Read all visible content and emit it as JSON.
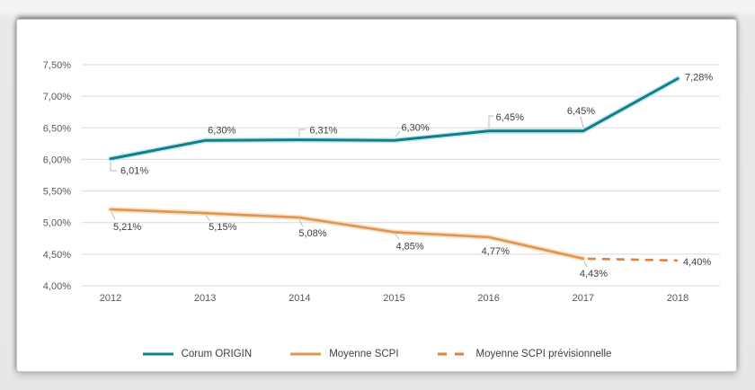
{
  "chart_data": {
    "type": "line",
    "title": "",
    "xlabel": "",
    "ylabel": "",
    "categories": [
      "2012",
      "2013",
      "2014",
      "2015",
      "2016",
      "2017",
      "2018"
    ],
    "y_axis": {
      "min": 4.0,
      "max": 7.5,
      "step": 0.5,
      "tick_labels": [
        "4,00%",
        "4,50%",
        "5,00%",
        "5,50%",
        "6,00%",
        "6,50%",
        "7,00%",
        "7,50%"
      ]
    },
    "grid": true,
    "legend_position": "bottom",
    "series": [
      {
        "name": "Corum ORIGIN",
        "color": "#117E8A",
        "halo": "#aadde1",
        "style": "solid",
        "values": [
          6.01,
          6.3,
          6.31,
          6.3,
          6.45,
          6.45,
          7.28
        ],
        "point_labels": [
          "6,01%",
          "6,30%",
          "6,31%",
          "6,30%",
          "6,45%",
          "6,45%",
          "7,28%"
        ]
      },
      {
        "name": "Moyenne SCPI",
        "color": "#E2954E",
        "halo": "#f2d4af",
        "style": "solid",
        "values": [
          5.21,
          5.15,
          5.08,
          4.85,
          4.77,
          4.43,
          null
        ],
        "point_labels": [
          "5,21%",
          "5,15%",
          "5,08%",
          "4,85%",
          "4,77%",
          "4,43%",
          null
        ]
      },
      {
        "name": "Moyenne SCPI prévisionnelle",
        "color": "#DE8241",
        "halo": null,
        "style": "dashed",
        "values": [
          null,
          null,
          null,
          null,
          null,
          4.43,
          4.4
        ],
        "point_labels": [
          null,
          null,
          null,
          null,
          null,
          null,
          "4,40%"
        ]
      }
    ],
    "colors": {
      "grid": "#d9d9d9",
      "axis_text": "#595959",
      "data_label": "#3d3d3d",
      "leader": "#b3b3b3",
      "panel_background": "#ffffff",
      "page_background": "#e9e9e9"
    },
    "label_offsets": [
      {
        "dx": [
          11,
          3,
          11,
          8,
          8,
          -18,
          8
        ],
        "dy": [
          8,
          -17,
          -16,
          -20,
          -21,
          -28,
          -7
        ]
      },
      {
        "dx": [
          3,
          4,
          -1,
          2,
          -8,
          -4,
          0
        ],
        "dy": [
          14,
          10,
          12,
          10,
          10,
          11,
          0
        ]
      },
      {
        "dx": [
          0,
          0,
          0,
          0,
          0,
          0,
          6
        ],
        "dy": [
          0,
          0,
          0,
          0,
          0,
          0,
          -4
        ]
      }
    ],
    "leader_lines": [
      [
        [
          104,
          158
        ],
        [
          104,
          168
        ],
        [
          111,
          168
        ]
      ],
      [
        [
          314,
          130
        ],
        [
          314,
          122
        ],
        [
          321,
          122
        ]
      ],
      [
        [
          421,
          130
        ],
        [
          426,
          124
        ]
      ],
      [
        [
          525,
          120
        ],
        [
          525,
          107
        ],
        [
          530,
          107
        ]
      ],
      [
        [
          630,
          120
        ],
        [
          627,
          107
        ]
      ],
      [
        [
          105,
          214
        ],
        [
          109,
          222
        ]
      ],
      [
        [
          210,
          218
        ],
        [
          215,
          224
        ]
      ],
      [
        [
          314,
          223
        ],
        [
          318,
          230
        ]
      ],
      [
        [
          420,
          238
        ],
        [
          425,
          244
        ]
      ],
      [
        [
          631,
          269
        ],
        [
          634,
          275
        ]
      ]
    ]
  }
}
